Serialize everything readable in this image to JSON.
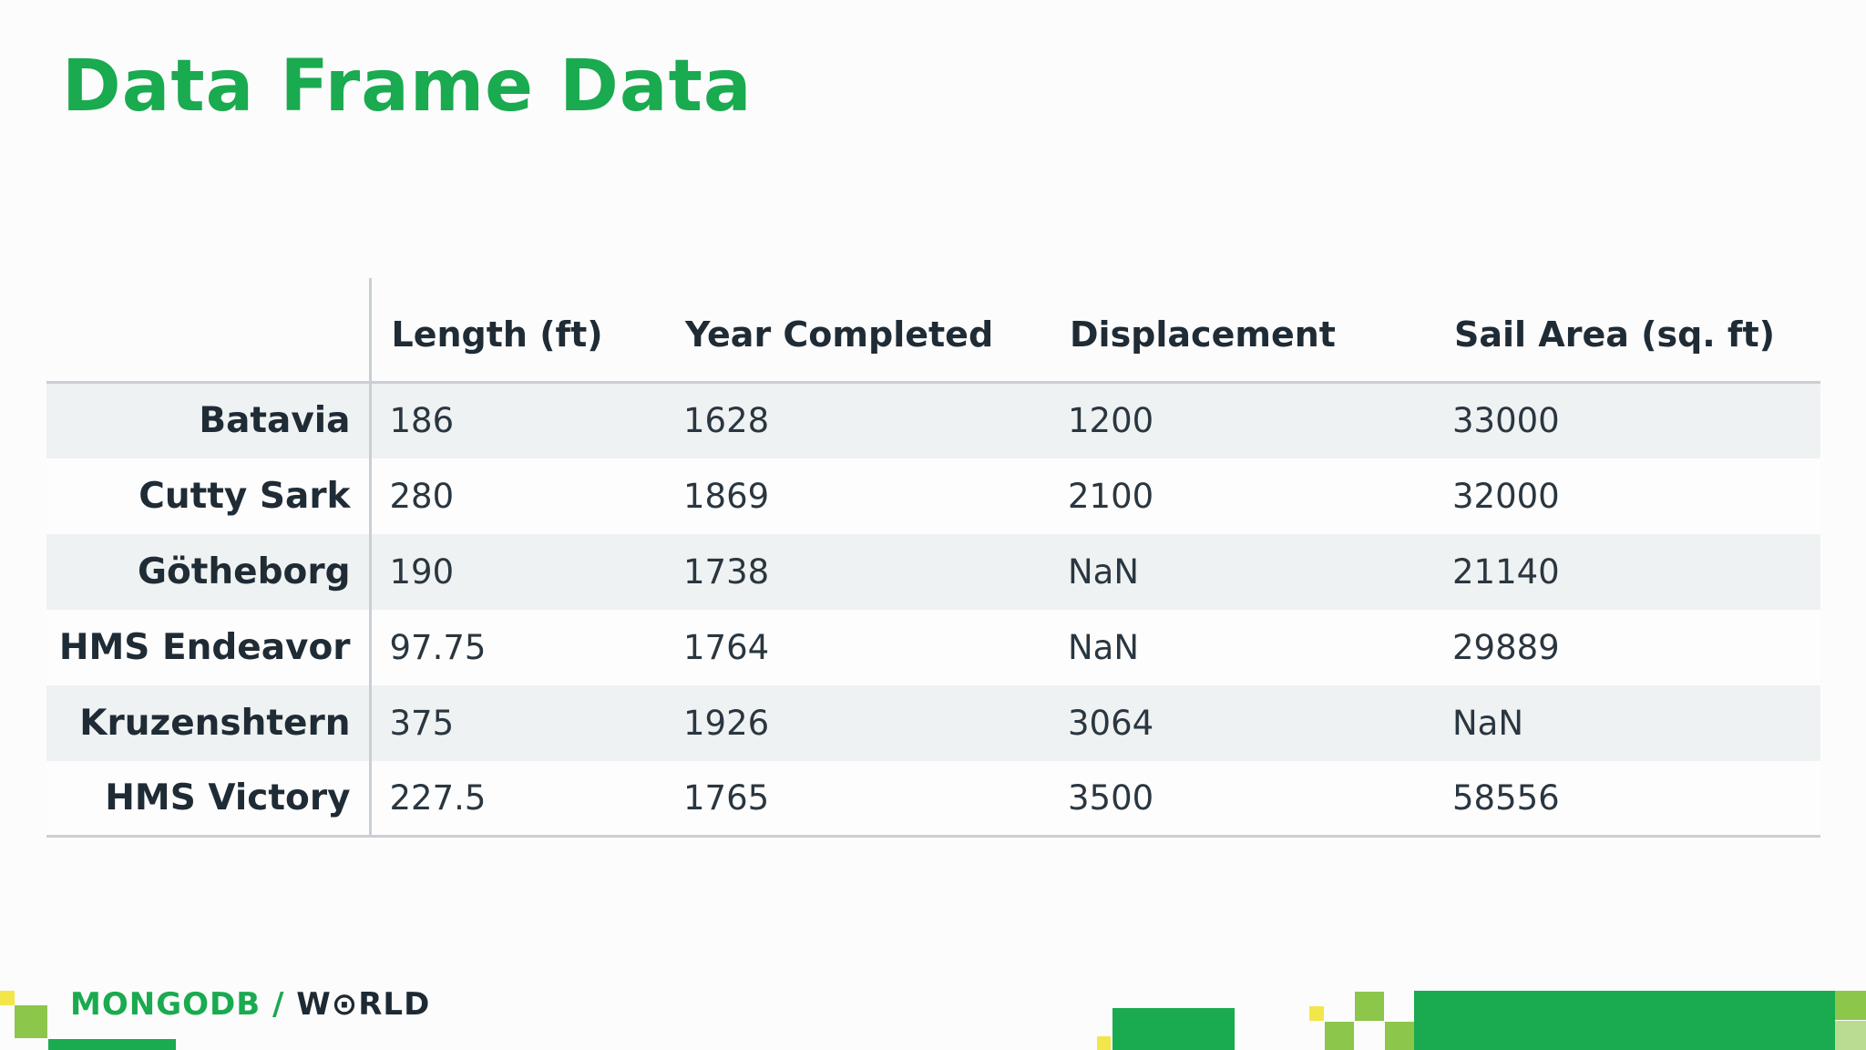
{
  "slide": {
    "title": "Data Frame Data"
  },
  "table": {
    "columns": [
      "Length (ft)",
      "Year Completed",
      "Displacement",
      "Sail Area (sq. ft)"
    ],
    "rows": [
      {
        "name": "Batavia",
        "values": [
          "186",
          "1628",
          "1200",
          "33000"
        ]
      },
      {
        "name": "Cutty Sark",
        "values": [
          "280",
          "1869",
          "2100",
          "32000"
        ]
      },
      {
        "name": "Götheborg",
        "values": [
          "190",
          "1738",
          "NaN",
          "21140"
        ]
      },
      {
        "name": "HMS Endeavor",
        "values": [
          "97.75",
          "1764",
          "NaN",
          "29889"
        ]
      },
      {
        "name": "Kruzenshtern",
        "values": [
          "375",
          "1926",
          "3064",
          "NaN"
        ]
      },
      {
        "name": "HMS Victory",
        "values": [
          "227.5",
          "1765",
          "3500",
          "58556"
        ]
      }
    ]
  },
  "footer": {
    "logo_left": "MONGODB /",
    "logo_right": "W⊙RLD"
  },
  "colors": {
    "brand_green": "#1aaa4f",
    "light_green": "#8cc64b",
    "yellow": "#f2e64a",
    "text_dark": "#1e2a33",
    "stripe": "#eff2f2"
  }
}
